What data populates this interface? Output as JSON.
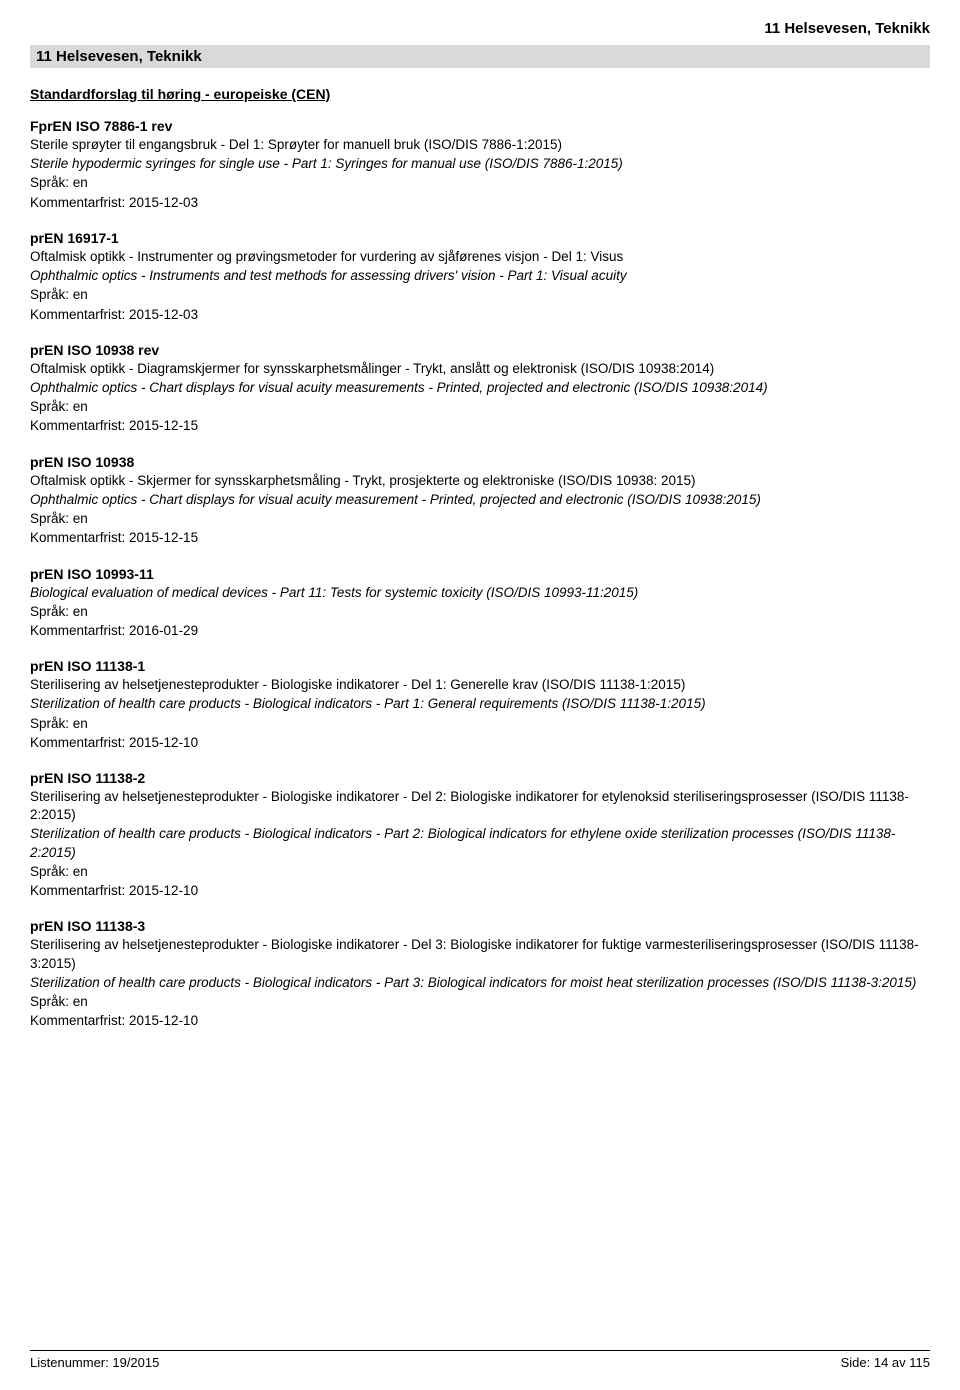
{
  "header_right": "11  Helsevesen, Teknikk",
  "section_bar": "11  Helsevesen, Teknikk",
  "subheading": "Standardforslag til høring - europeiske (CEN)",
  "entries": [
    {
      "title": "FprEN ISO 7886-1 rev",
      "nor": "Sterile sprøyter til engangsbruk - Del 1: Sprøyter for manuell bruk (ISO/DIS 7886-1:2015)",
      "eng": "Sterile hypodermic syringes for single use - Part 1: Syringes for manual use (ISO/DIS 7886-1:2015)",
      "lang": "Språk: en",
      "deadline": "Kommentarfrist: 2015-12-03"
    },
    {
      "title": "prEN 16917-1",
      "nor": "Oftalmisk optikk - Instrumenter og prøvingsmetoder for vurdering av sjåførenes visjon - Del 1: Visus",
      "eng": "Ophthalmic optics - Instruments and test methods for assessing drivers' vision - Part 1: Visual acuity",
      "lang": "Språk: en",
      "deadline": "Kommentarfrist: 2015-12-03"
    },
    {
      "title": "prEN ISO 10938 rev",
      "nor": "Oftalmisk optikk - Diagramskjermer for synsskarphetsmålinger - Trykt, anslått og elektronisk (ISO/DIS 10938:2014)",
      "eng": "Ophthalmic optics - Chart displays for visual acuity measurements - Printed, projected and electronic (ISO/DIS 10938:2014)",
      "lang": "Språk: en",
      "deadline": "Kommentarfrist: 2015-12-15"
    },
    {
      "title": "prEN ISO 10938",
      "nor": "Oftalmisk optikk - Skjermer for synsskarphetsmåling - Trykt, prosjekterte og elektroniske (ISO/DIS 10938: 2015)",
      "eng": "Ophthalmic optics - Chart displays for visual acuity measurement - Printed, projected and electronic (ISO/DIS 10938:2015)",
      "lang": "Språk: en",
      "deadline": "Kommentarfrist: 2015-12-15"
    },
    {
      "title": "prEN ISO 10993-11",
      "nor": "",
      "eng": "Biological evaluation of medical devices - Part 11: Tests for systemic toxicity (ISO/DIS 10993-11:2015)",
      "lang": "Språk: en",
      "deadline": "Kommentarfrist: 2016-01-29"
    },
    {
      "title": "prEN ISO 11138-1",
      "nor": "Sterilisering av helsetjenesteprodukter - Biologiske indikatorer - Del 1: Generelle krav (ISO/DIS 11138-1:2015)",
      "eng": "Sterilization of health care products - Biological indicators - Part 1: General requirements (ISO/DIS 11138-1:2015)",
      "lang": "Språk: en",
      "deadline": "Kommentarfrist: 2015-12-10"
    },
    {
      "title": "prEN ISO 11138-2",
      "nor": "Sterilisering av helsetjenesteprodukter - Biologiske indikatorer - Del 2: Biologiske indikatorer for etylenoksid steriliseringsprosesser (ISO/DIS 11138-2:2015)",
      "eng": "Sterilization of health care products - Biological indicators - Part 2: Biological indicators for ethylene oxide sterilization processes (ISO/DIS 11138-2:2015)",
      "lang": "Språk: en",
      "deadline": "Kommentarfrist: 2015-12-10"
    },
    {
      "title": "prEN ISO 11138-3",
      "nor": "Sterilisering av helsetjenesteprodukter - Biologiske indikatorer - Del 3: Biologiske indikatorer for fuktige varmesteriliseringsprosesser (ISO/DIS 11138-3:2015)",
      "eng": "Sterilization of health care products - Biological indicators - Part 3: Biological indicators for moist heat sterilization processes (ISO/DIS 11138-3:2015)",
      "lang": "Språk: en",
      "deadline": "Kommentarfrist: 2015-12-10"
    }
  ],
  "footer_left": "Listenummer: 19/2015",
  "footer_right": "Side: 14 av 115"
}
